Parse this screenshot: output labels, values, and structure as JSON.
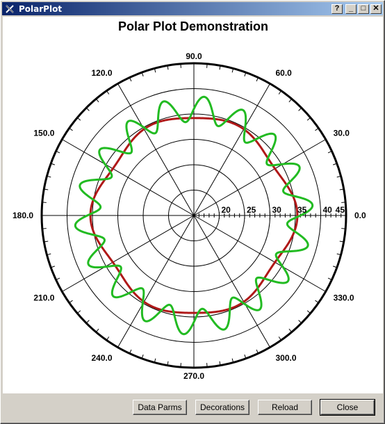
{
  "window": {
    "title": "PolarPlot",
    "help_glyph": "?",
    "minimize_glyph": "_",
    "maximize_glyph": "□",
    "close_glyph": "✕"
  },
  "buttons": {
    "data_parms": "Data Parms",
    "decorations": "Decorations",
    "reload": "Reload",
    "close": "Close"
  },
  "colors": {
    "series_red": "#b01818",
    "series_green": "#22bb22",
    "grid": "#000000"
  },
  "chart_data": {
    "type": "polar",
    "title": "Polar Plot Demonstration",
    "angle_labels": [
      {
        "angle": 0,
        "label": "0.0"
      },
      {
        "angle": 30,
        "label": "30.0"
      },
      {
        "angle": 60,
        "label": "60.0"
      },
      {
        "angle": 90,
        "label": "90.0"
      },
      {
        "angle": 120,
        "label": "120.0"
      },
      {
        "angle": 150,
        "label": "150.0"
      },
      {
        "angle": 180,
        "label": "180.0"
      },
      {
        "angle": 210,
        "label": "210.0"
      },
      {
        "angle": 240,
        "label": "240.0"
      },
      {
        "angle": 270,
        "label": "270.0"
      },
      {
        "angle": 300,
        "label": "300.0"
      },
      {
        "angle": 330,
        "label": "330.0"
      }
    ],
    "radial_axis": {
      "range": [
        15,
        45
      ],
      "tick_labels": [
        "20",
        "25",
        "30",
        "35",
        "40",
        "45"
      ],
      "tick_values": [
        20,
        25,
        30,
        35,
        40,
        45
      ]
    },
    "rings": [
      20,
      25,
      30,
      35,
      40,
      45
    ],
    "series": [
      {
        "color": "#b01818",
        "function": "r = 34.3 + 0.6*cos(6*theta) + 0.5*cos(4*theta)",
        "base": 34.3,
        "harmonics": [
          {
            "k": 6,
            "amp": 0.6
          },
          {
            "k": 4,
            "amp": 0.5
          }
        ]
      },
      {
        "color": "#22bb22",
        "function": "r = 35.5 + 2.5*sin(18*theta) + 0.5*cos(4*theta)",
        "base": 35.5,
        "harmonics": [
          {
            "k": 18,
            "amp": 2.5,
            "phase": "sin"
          },
          {
            "k": 4,
            "amp": 0.5
          }
        ]
      }
    ]
  }
}
